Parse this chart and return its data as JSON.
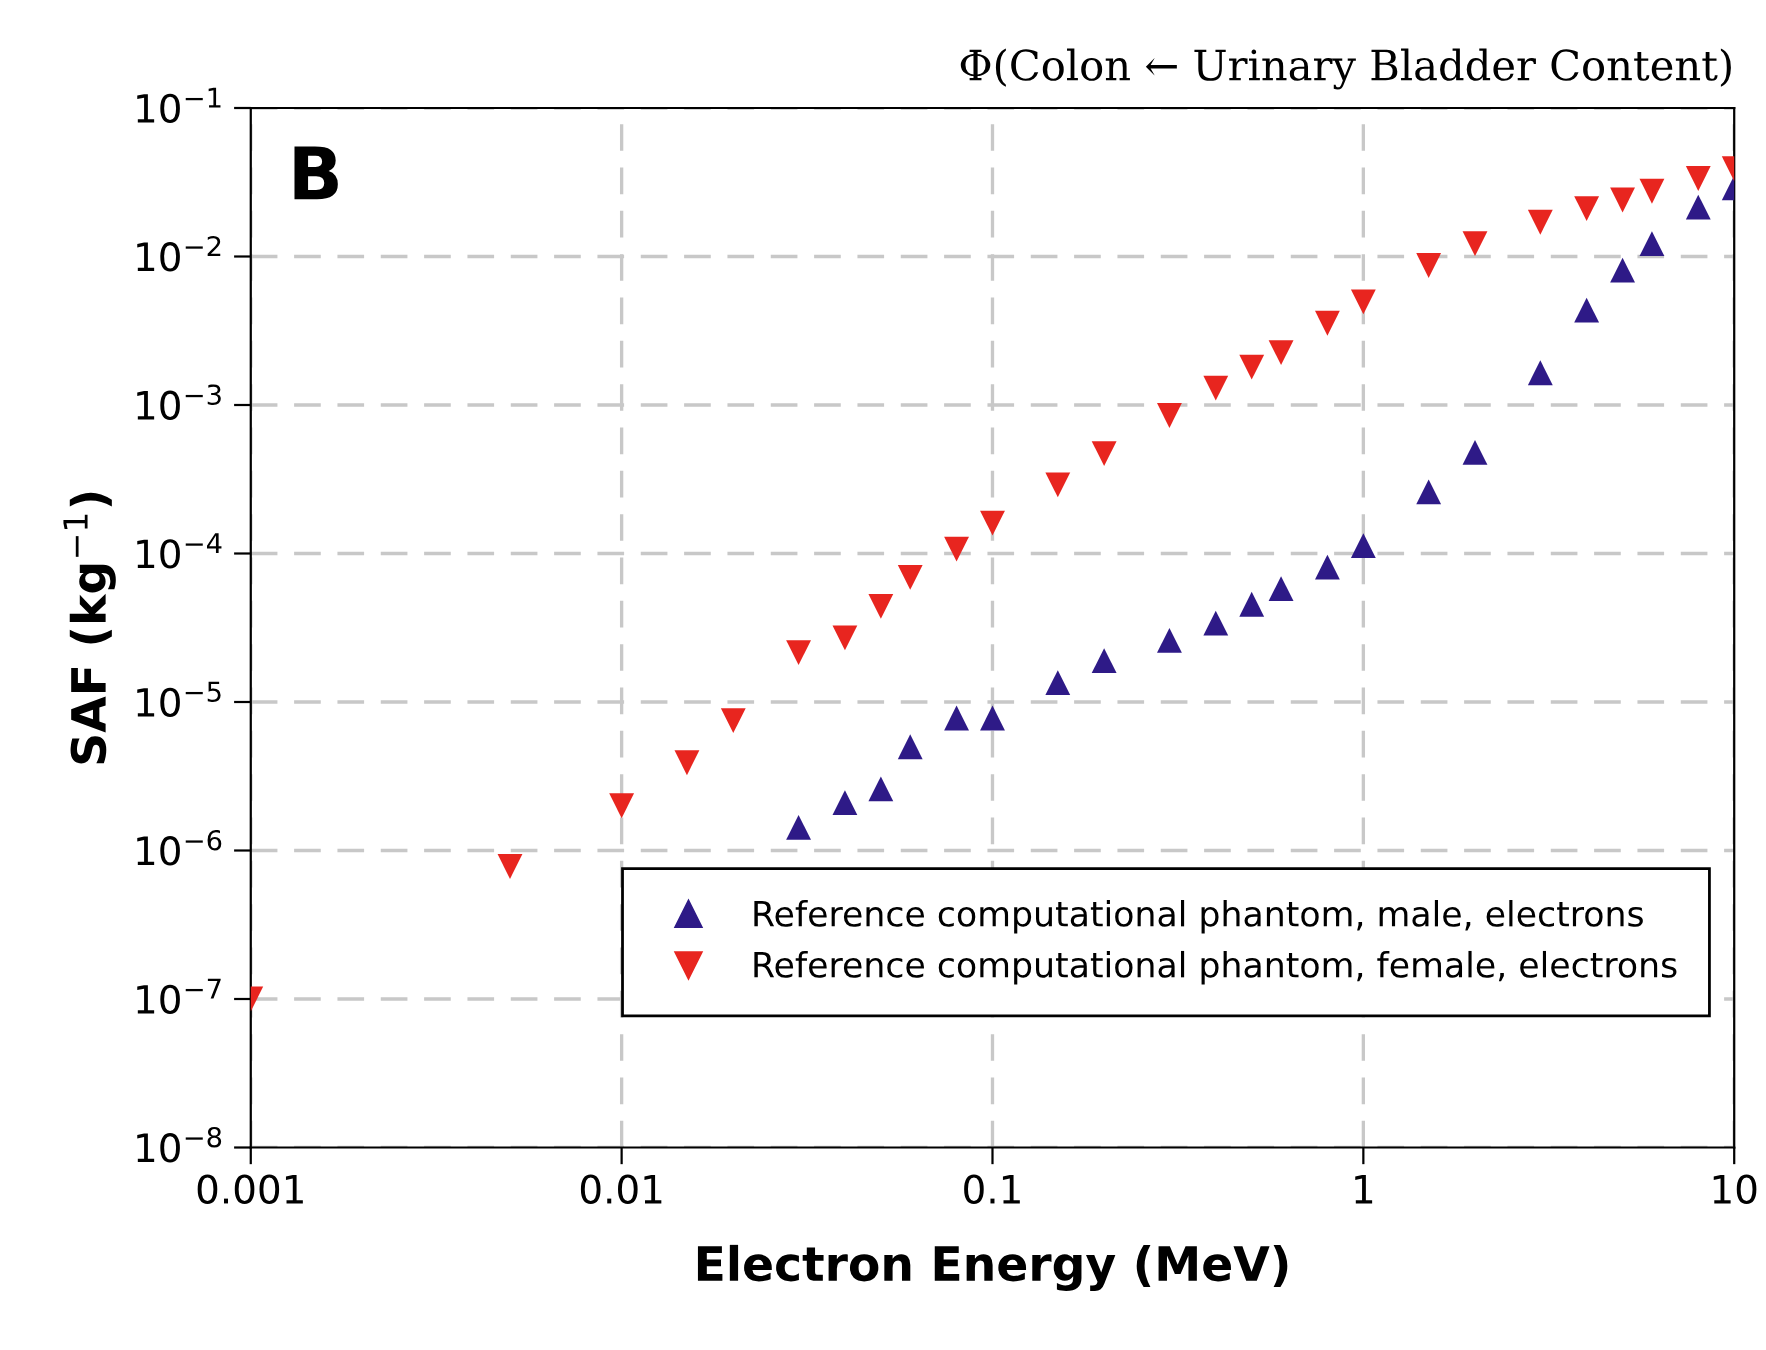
{
  "chart_data": {
    "type": "scatter",
    "title": "Φ(Colon ← Urinary Bladder Content)",
    "xlabel": "Electron Energy (MeV)",
    "ylabel": "SAF (kg$^{−1}$)",
    "annotations": [
      "B"
    ],
    "log": "xy",
    "grid": true,
    "legend": "bottom right",
    "xlim": [
      0.001,
      10
    ],
    "xticks": [
      0.001,
      0.01,
      0.1,
      1,
      10
    ],
    "ylim": [
      1e-08,
      0.1
    ],
    "yticks": [
      {
        "value": 1e-08,
        "label": "10$^{−8}$"
      },
      {
        "value": 1e-07,
        "label": "10$^{−7}$"
      },
      {
        "value": 1e-06,
        "label": "10$^{−6}$"
      },
      {
        "value": 1e-05,
        "label": "10$^{−5}$"
      },
      {
        "value": 0.0001,
        "label": "10$^{−4}$"
      },
      {
        "value": 0.001,
        "label": "10$^{−3}$"
      },
      {
        "value": 0.01,
        "label": "10$^{−2}$"
      },
      {
        "value": 0.1,
        "label": "10$^{−1}$"
      }
    ],
    "series": [
      {
        "name": "Reference computational phantom, male, electrons",
        "color": "#2e1a87",
        "marker": "triangle",
        "x": [
          0.03,
          0.04,
          0.05,
          0.06,
          0.08,
          0.1,
          0.15,
          0.2,
          0.3,
          0.4,
          0.5,
          0.6,
          0.8,
          1,
          1.5,
          2,
          3,
          4,
          5,
          6,
          8,
          10
        ],
        "values": [
          1.43e-06,
          2.1e-06,
          2.6e-06,
          5e-06,
          7.8e-06,
          7.8e-06,
          1.35e-05,
          1.9e-05,
          2.6e-05,
          3.4e-05,
          4.55e-05,
          5.8e-05,
          8.1e-05,
          0.000113,
          0.00026,
          0.00048,
          0.00165,
          0.00435,
          0.0081,
          0.0122,
          0.0215,
          0.029
        ]
      },
      {
        "name": "Reference computational phantom, female, electrons",
        "color": "#e8251f",
        "marker": "triangle_down",
        "x": [
          0.001,
          0.005,
          0.01,
          0.015,
          0.02,
          0.03,
          0.04,
          0.05,
          0.06,
          0.08,
          0.1,
          0.15,
          0.2,
          0.3,
          0.4,
          0.5,
          0.6,
          0.8,
          1,
          1.5,
          2,
          3,
          4,
          5,
          6,
          8,
          10
        ],
        "values": [
          1e-07,
          7.8e-07,
          2e-06,
          3.9e-06,
          7.5e-06,
          2.15e-05,
          2.7e-05,
          4.4e-05,
          6.9e-05,
          0.000107,
          0.00016,
          0.00029,
          0.00047,
          0.00085,
          0.0013,
          0.0018,
          0.00225,
          0.00355,
          0.00495,
          0.0087,
          0.0122,
          0.017,
          0.021,
          0.024,
          0.0275,
          0.0335,
          0.039
        ]
      }
    ]
  }
}
